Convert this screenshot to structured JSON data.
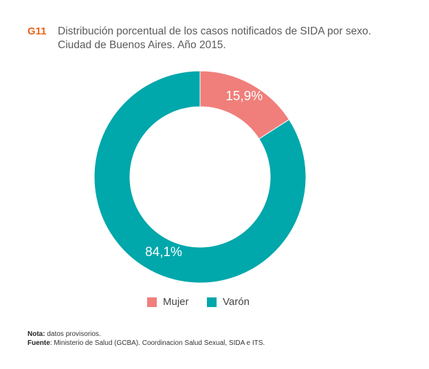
{
  "header": {
    "figure_id": "G11",
    "title_line1": "Distribución porcentual de los casos notificados de SIDA por sexo.",
    "title_line2": "Ciudad de Buenos Aires. Año 2015."
  },
  "chart_data": {
    "type": "pie",
    "donut": true,
    "title": "Distribución porcentual de los casos notificados de SIDA por sexo. Ciudad de Buenos Aires. Año 2015.",
    "categories": [
      "Mujer",
      "Varón"
    ],
    "values": [
      15.9,
      84.1
    ],
    "labels": [
      "15,9%",
      "84,1%"
    ],
    "colors": [
      "#f07f7b",
      "#00a7ab"
    ],
    "legend_position": "bottom",
    "start": "top, clockwise"
  },
  "legend": {
    "items": [
      {
        "label": "Mujer",
        "color": "#f07f7b"
      },
      {
        "label": "Varón",
        "color": "#00a7ab"
      }
    ]
  },
  "notes": {
    "nota_label": "Nota:",
    "nota_text": " datos provisorios.",
    "fuente_label": "Fuente",
    "fuente_text": ": Ministerio de Salud (GCBA). Coordinacion Salud Sexual, SIDA e ITS."
  }
}
